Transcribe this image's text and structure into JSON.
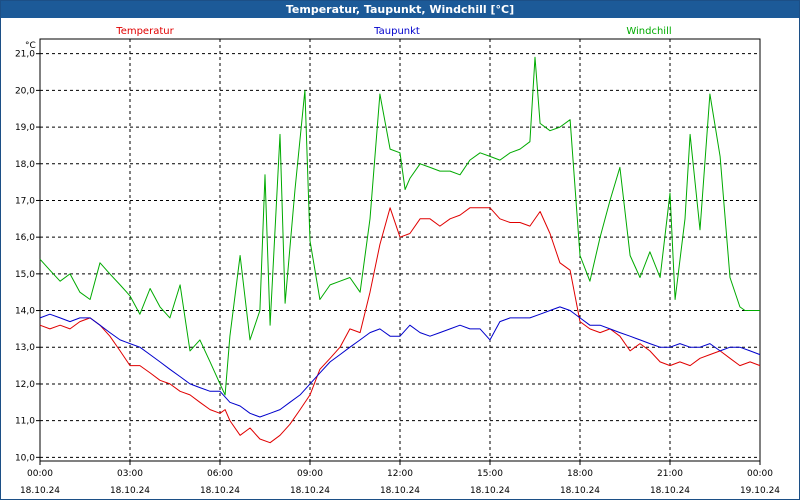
{
  "title": "Temperatur, Taupunkt, Windchill [°C]",
  "chart_data": {
    "type": "line",
    "title": "Temperatur, Taupunkt, Windchill [°C]",
    "ylabel": "°C",
    "xlabel": "",
    "ylim": [
      9.9,
      21.4
    ],
    "xlim": [
      0,
      24
    ],
    "grid": true,
    "yticks": [
      "10,0",
      "11,0",
      "12,0",
      "13,0",
      "14,0",
      "15,0",
      "16,0",
      "17,0",
      "18,0",
      "19,0",
      "20,0",
      "21,0"
    ],
    "ytick_values": [
      10,
      11,
      12,
      13,
      14,
      15,
      16,
      17,
      18,
      19,
      20,
      21
    ],
    "xticks": [
      {
        "time": "00:00",
        "date": "18.10.24",
        "h": 0
      },
      {
        "time": "03:00",
        "date": "18.10.24",
        "h": 3
      },
      {
        "time": "06:00",
        "date": "18.10.24",
        "h": 6
      },
      {
        "time": "09:00",
        "date": "18.10.24",
        "h": 9
      },
      {
        "time": "12:00",
        "date": "18.10.24",
        "h": 12
      },
      {
        "time": "15:00",
        "date": "18.10.24",
        "h": 15
      },
      {
        "time": "18:00",
        "date": "18.10.24",
        "h": 18
      },
      {
        "time": "21:00",
        "date": "18.10.24",
        "h": 21
      },
      {
        "time": "00:00",
        "date": "19.10.24",
        "h": 24
      }
    ],
    "series": [
      {
        "name": "Temperatur",
        "color": "#e00000",
        "points": [
          [
            0,
            13.6
          ],
          [
            0.33,
            13.5
          ],
          [
            0.67,
            13.6
          ],
          [
            1.0,
            13.5
          ],
          [
            1.33,
            13.7
          ],
          [
            1.67,
            13.8
          ],
          [
            2.0,
            13.6
          ],
          [
            2.33,
            13.3
          ],
          [
            2.67,
            12.9
          ],
          [
            3.0,
            12.5
          ],
          [
            3.33,
            12.5
          ],
          [
            3.67,
            12.3
          ],
          [
            4.0,
            12.1
          ],
          [
            4.33,
            12.0
          ],
          [
            4.67,
            11.8
          ],
          [
            5.0,
            11.7
          ],
          [
            5.33,
            11.5
          ],
          [
            5.67,
            11.3
          ],
          [
            6.0,
            11.2
          ],
          [
            6.17,
            11.3
          ],
          [
            6.33,
            11.0
          ],
          [
            6.67,
            10.6
          ],
          [
            7.0,
            10.8
          ],
          [
            7.33,
            10.5
          ],
          [
            7.67,
            10.4
          ],
          [
            8.0,
            10.6
          ],
          [
            8.33,
            10.9
          ],
          [
            8.67,
            11.3
          ],
          [
            9.0,
            11.7
          ],
          [
            9.33,
            12.4
          ],
          [
            9.67,
            12.7
          ],
          [
            10.0,
            13.0
          ],
          [
            10.33,
            13.5
          ],
          [
            10.67,
            13.4
          ],
          [
            11.0,
            14.5
          ],
          [
            11.33,
            15.8
          ],
          [
            11.67,
            16.8
          ],
          [
            12.0,
            16.0
          ],
          [
            12.33,
            16.1
          ],
          [
            12.67,
            16.5
          ],
          [
            13.0,
            16.5
          ],
          [
            13.33,
            16.3
          ],
          [
            13.67,
            16.5
          ],
          [
            14.0,
            16.6
          ],
          [
            14.33,
            16.8
          ],
          [
            14.67,
            16.8
          ],
          [
            15.0,
            16.8
          ],
          [
            15.33,
            16.5
          ],
          [
            15.67,
            16.4
          ],
          [
            16.0,
            16.4
          ],
          [
            16.33,
            16.3
          ],
          [
            16.67,
            16.7
          ],
          [
            17.0,
            16.1
          ],
          [
            17.33,
            15.3
          ],
          [
            17.67,
            15.1
          ],
          [
            18.0,
            13.7
          ],
          [
            18.33,
            13.5
          ],
          [
            18.67,
            13.4
          ],
          [
            19.0,
            13.5
          ],
          [
            19.33,
            13.3
          ],
          [
            19.67,
            12.9
          ],
          [
            20.0,
            13.1
          ],
          [
            20.33,
            12.9
          ],
          [
            20.67,
            12.6
          ],
          [
            21.0,
            12.5
          ],
          [
            21.33,
            12.6
          ],
          [
            21.67,
            12.5
          ],
          [
            22.0,
            12.7
          ],
          [
            22.33,
            12.8
          ],
          [
            22.67,
            12.9
          ],
          [
            23.0,
            12.7
          ],
          [
            23.33,
            12.5
          ],
          [
            23.67,
            12.6
          ],
          [
            24.0,
            12.5
          ]
        ]
      },
      {
        "name": "Taupunkt",
        "color": "#0000cc",
        "points": [
          [
            0,
            13.8
          ],
          [
            0.33,
            13.9
          ],
          [
            0.67,
            13.8
          ],
          [
            1.0,
            13.7
          ],
          [
            1.33,
            13.8
          ],
          [
            1.67,
            13.8
          ],
          [
            2.0,
            13.6
          ],
          [
            2.33,
            13.4
          ],
          [
            2.67,
            13.2
          ],
          [
            3.0,
            13.1
          ],
          [
            3.33,
            13.0
          ],
          [
            3.67,
            12.8
          ],
          [
            4.0,
            12.6
          ],
          [
            4.33,
            12.4
          ],
          [
            4.67,
            12.2
          ],
          [
            5.0,
            12.0
          ],
          [
            5.33,
            11.9
          ],
          [
            5.67,
            11.8
          ],
          [
            6.0,
            11.8
          ],
          [
            6.33,
            11.5
          ],
          [
            6.67,
            11.4
          ],
          [
            7.0,
            11.2
          ],
          [
            7.33,
            11.1
          ],
          [
            7.67,
            11.2
          ],
          [
            8.0,
            11.3
          ],
          [
            8.33,
            11.5
          ],
          [
            8.67,
            11.7
          ],
          [
            9.0,
            12.0
          ],
          [
            9.33,
            12.3
          ],
          [
            9.67,
            12.6
          ],
          [
            10.0,
            12.8
          ],
          [
            10.33,
            13.0
          ],
          [
            10.67,
            13.2
          ],
          [
            11.0,
            13.4
          ],
          [
            11.33,
            13.5
          ],
          [
            11.67,
            13.3
          ],
          [
            12.0,
            13.3
          ],
          [
            12.33,
            13.6
          ],
          [
            12.67,
            13.4
          ],
          [
            13.0,
            13.3
          ],
          [
            13.33,
            13.4
          ],
          [
            13.67,
            13.5
          ],
          [
            14.0,
            13.6
          ],
          [
            14.33,
            13.5
          ],
          [
            14.67,
            13.5
          ],
          [
            15.0,
            13.2
          ],
          [
            15.33,
            13.7
          ],
          [
            15.67,
            13.8
          ],
          [
            16.0,
            13.8
          ],
          [
            16.33,
            13.8
          ],
          [
            16.67,
            13.9
          ],
          [
            17.0,
            14.0
          ],
          [
            17.33,
            14.1
          ],
          [
            17.67,
            14.0
          ],
          [
            18.0,
            13.8
          ],
          [
            18.33,
            13.6
          ],
          [
            18.67,
            13.6
          ],
          [
            19.0,
            13.5
          ],
          [
            19.33,
            13.4
          ],
          [
            19.67,
            13.3
          ],
          [
            20.0,
            13.2
          ],
          [
            20.33,
            13.1
          ],
          [
            20.67,
            13.0
          ],
          [
            21.0,
            13.0
          ],
          [
            21.33,
            13.1
          ],
          [
            21.67,
            13.0
          ],
          [
            22.0,
            13.0
          ],
          [
            22.33,
            13.1
          ],
          [
            22.67,
            12.9
          ],
          [
            23.0,
            13.0
          ],
          [
            23.33,
            13.0
          ],
          [
            23.67,
            12.9
          ],
          [
            24.0,
            12.8
          ]
        ]
      },
      {
        "name": "Windchill",
        "color": "#00aa00",
        "points": [
          [
            0,
            15.4
          ],
          [
            0.33,
            15.1
          ],
          [
            0.67,
            14.8
          ],
          [
            1.0,
            15.0
          ],
          [
            1.33,
            14.5
          ],
          [
            1.67,
            14.3
          ],
          [
            2.0,
            15.3
          ],
          [
            2.33,
            15.0
          ],
          [
            2.67,
            14.7
          ],
          [
            3.0,
            14.4
          ],
          [
            3.33,
            13.9
          ],
          [
            3.67,
            14.6
          ],
          [
            4.0,
            14.1
          ],
          [
            4.33,
            13.8
          ],
          [
            4.67,
            14.7
          ],
          [
            5.0,
            12.9
          ],
          [
            5.33,
            13.2
          ],
          [
            5.67,
            12.6
          ],
          [
            6.0,
            12.0
          ],
          [
            6.17,
            11.7
          ],
          [
            6.33,
            13.3
          ],
          [
            6.67,
            15.5
          ],
          [
            7.0,
            13.2
          ],
          [
            7.33,
            14.0
          ],
          [
            7.5,
            17.7
          ],
          [
            7.67,
            13.6
          ],
          [
            8.0,
            18.8
          ],
          [
            8.17,
            14.2
          ],
          [
            8.5,
            17.3
          ],
          [
            8.83,
            20.0
          ],
          [
            9.0,
            15.9
          ],
          [
            9.33,
            14.3
          ],
          [
            9.67,
            14.7
          ],
          [
            10.0,
            14.8
          ],
          [
            10.33,
            14.9
          ],
          [
            10.67,
            14.5
          ],
          [
            11.0,
            16.5
          ],
          [
            11.33,
            19.9
          ],
          [
            11.67,
            18.4
          ],
          [
            12.0,
            18.3
          ],
          [
            12.17,
            17.3
          ],
          [
            12.33,
            17.6
          ],
          [
            12.67,
            18.0
          ],
          [
            13.0,
            17.9
          ],
          [
            13.33,
            17.8
          ],
          [
            13.67,
            17.8
          ],
          [
            14.0,
            17.7
          ],
          [
            14.33,
            18.1
          ],
          [
            14.67,
            18.3
          ],
          [
            15.0,
            18.2
          ],
          [
            15.33,
            18.1
          ],
          [
            15.67,
            18.3
          ],
          [
            16.0,
            18.4
          ],
          [
            16.33,
            18.6
          ],
          [
            16.5,
            20.9
          ],
          [
            16.67,
            19.1
          ],
          [
            17.0,
            18.9
          ],
          [
            17.33,
            19.0
          ],
          [
            17.67,
            19.2
          ],
          [
            18.0,
            15.5
          ],
          [
            18.33,
            14.8
          ],
          [
            18.67,
            16.0
          ],
          [
            19.0,
            17.0
          ],
          [
            19.33,
            17.9
          ],
          [
            19.67,
            15.5
          ],
          [
            20.0,
            14.9
          ],
          [
            20.33,
            15.6
          ],
          [
            20.67,
            14.9
          ],
          [
            21.0,
            17.2
          ],
          [
            21.17,
            14.3
          ],
          [
            21.5,
            16.5
          ],
          [
            21.67,
            18.8
          ],
          [
            22.0,
            16.2
          ],
          [
            22.33,
            19.9
          ],
          [
            22.67,
            18.2
          ],
          [
            23.0,
            14.9
          ],
          [
            23.33,
            14.1
          ],
          [
            23.5,
            14.0
          ],
          [
            23.67,
            14.0
          ],
          [
            24.0,
            14.0
          ]
        ]
      }
    ]
  }
}
